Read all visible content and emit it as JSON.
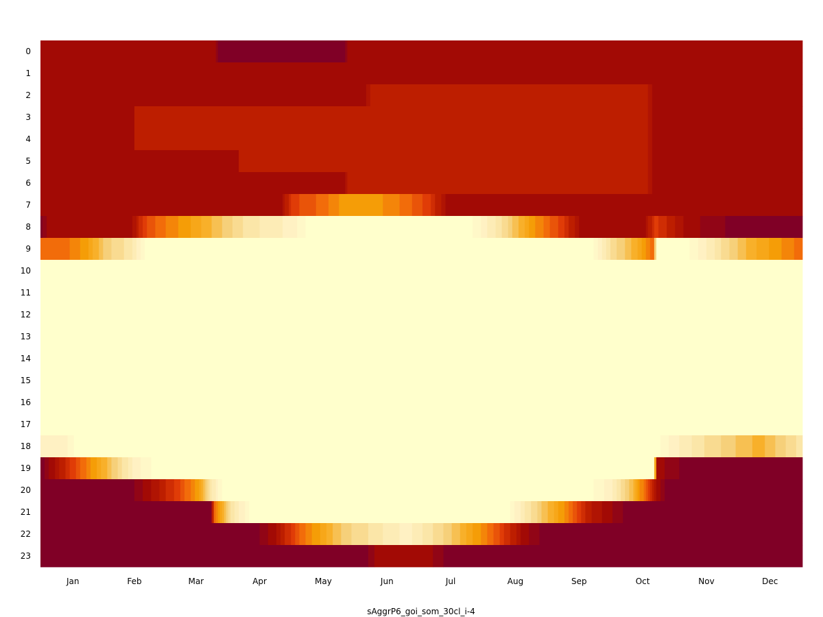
{
  "chart_data": {
    "type": "heatmap",
    "title": "",
    "xlabel": "sAggrP6_goi_som_30cl_i-4",
    "ylabel": "",
    "x_tick_labels": [
      "Jan",
      "Feb",
      "Mar",
      "Apr",
      "May",
      "Jun",
      "Jul",
      "Aug",
      "Sep",
      "Oct",
      "Nov",
      "Dec"
    ],
    "y_tick_labels": [
      "0",
      "1",
      "2",
      "3",
      "4",
      "5",
      "6",
      "7",
      "8",
      "9",
      "10",
      "11",
      "12",
      "13",
      "14",
      "15",
      "16",
      "17",
      "18",
      "19",
      "20",
      "21",
      "22",
      "23"
    ],
    "x_range_days": [
      1,
      365
    ],
    "y_range_hours": [
      0,
      23
    ],
    "grid": false,
    "legend": "none",
    "colormap": [
      "#800026",
      "#a20a05",
      "#bd1e00",
      "#e03c07",
      "#f26c0a",
      "#f59d07",
      "#f8b02a",
      "#f6d07a",
      "#fbe6a8",
      "#fff1c3",
      "#ffffcc"
    ],
    "value_scale": "0 (darkest, #800026) to 10 (lightest, #ffffcc)",
    "profiles": {
      "description": "Per hour: list of [day_of_year, level] control points; level 0-10 indexes colormap; linear interpolation between points.",
      "hours": [
        [
          [
            1,
            1
          ],
          [
            84,
            1
          ],
          [
            86,
            0
          ],
          [
            146,
            0
          ],
          [
            148,
            1
          ],
          [
            365,
            1
          ]
        ],
        [
          [
            1,
            1
          ],
          [
            365,
            1
          ]
        ],
        [
          [
            1,
            1
          ],
          [
            156,
            1
          ],
          [
            160,
            2
          ],
          [
            290,
            2
          ],
          [
            294,
            1
          ],
          [
            365,
            1
          ]
        ],
        [
          [
            1,
            1
          ],
          [
            45,
            1
          ],
          [
            46,
            2
          ],
          [
            146,
            2
          ],
          [
            148,
            2
          ],
          [
            290,
            2
          ],
          [
            294,
            1
          ],
          [
            365,
            1
          ]
        ],
        [
          [
            1,
            1
          ],
          [
            45,
            1
          ],
          [
            46,
            2
          ],
          [
            146,
            2
          ],
          [
            148,
            2
          ],
          [
            290,
            2
          ],
          [
            294,
            1
          ],
          [
            365,
            1
          ]
        ],
        [
          [
            1,
            1
          ],
          [
            95,
            1
          ],
          [
            96,
            2
          ],
          [
            136,
            2
          ],
          [
            138,
            2
          ],
          [
            290,
            2
          ],
          [
            294,
            1
          ],
          [
            365,
            1
          ]
        ],
        [
          [
            1,
            1
          ],
          [
            146,
            1
          ],
          [
            148,
            2
          ],
          [
            290,
            2
          ],
          [
            294,
            1
          ],
          [
            365,
            1
          ]
        ],
        [
          [
            1,
            1
          ],
          [
            116,
            1
          ],
          [
            121,
            3
          ],
          [
            136,
            4
          ],
          [
            146,
            5
          ],
          [
            161,
            5
          ],
          [
            176,
            4
          ],
          [
            186,
            3
          ],
          [
            196,
            1
          ],
          [
            365,
            1
          ]
        ],
        [
          [
            1,
            0
          ],
          [
            5,
            1
          ],
          [
            44,
            1
          ],
          [
            50,
            3
          ],
          [
            58,
            4
          ],
          [
            70,
            5
          ],
          [
            80,
            6
          ],
          [
            100,
            8
          ],
          [
            122,
            9
          ],
          [
            130,
            10
          ],
          [
            206,
            10
          ],
          [
            220,
            8
          ],
          [
            236,
            5
          ],
          [
            250,
            3
          ],
          [
            260,
            1
          ],
          [
            290,
            1
          ],
          [
            295,
            3
          ],
          [
            310,
            1
          ],
          [
            335,
            0
          ],
          [
            365,
            0
          ]
        ],
        [
          [
            1,
            4
          ],
          [
            12,
            4
          ],
          [
            22,
            5
          ],
          [
            32,
            7
          ],
          [
            44,
            8
          ],
          [
            52,
            10
          ],
          [
            265,
            10
          ],
          [
            272,
            8
          ],
          [
            285,
            6
          ],
          [
            294,
            4
          ],
          [
            296,
            10
          ],
          [
            310,
            10
          ],
          [
            325,
            8
          ],
          [
            340,
            6
          ],
          [
            365,
            4
          ]
        ],
        [
          [
            1,
            10
          ],
          [
            365,
            10
          ]
        ],
        [
          [
            1,
            10
          ],
          [
            365,
            10
          ]
        ],
        [
          [
            1,
            10
          ],
          [
            365,
            10
          ]
        ],
        [
          [
            1,
            10
          ],
          [
            365,
            10
          ]
        ],
        [
          [
            1,
            10
          ],
          [
            365,
            10
          ]
        ],
        [
          [
            1,
            10
          ],
          [
            365,
            10
          ]
        ],
        [
          [
            1,
            10
          ],
          [
            365,
            10
          ]
        ],
        [
          [
            1,
            10
          ],
          [
            365,
            10
          ]
        ],
        [
          [
            1,
            9
          ],
          [
            12,
            9
          ],
          [
            18,
            10
          ],
          [
            295,
            10
          ],
          [
            303,
            9
          ],
          [
            315,
            8
          ],
          [
            330,
            7
          ],
          [
            345,
            6
          ],
          [
            355,
            7
          ],
          [
            365,
            8
          ]
        ],
        [
          [
            1,
            0
          ],
          [
            6,
            1
          ],
          [
            16,
            3
          ],
          [
            26,
            5
          ],
          [
            36,
            7
          ],
          [
            46,
            9
          ],
          [
            56,
            10
          ],
          [
            294,
            10
          ],
          [
            296,
            1
          ],
          [
            310,
            0
          ],
          [
            365,
            0
          ]
        ],
        [
          [
            1,
            0
          ],
          [
            44,
            0
          ],
          [
            52,
            1
          ],
          [
            66,
            3
          ],
          [
            76,
            5
          ],
          [
            82,
            8
          ],
          [
            88,
            10
          ],
          [
            263,
            10
          ],
          [
            273,
            9
          ],
          [
            285,
            6
          ],
          [
            292,
            3
          ],
          [
            296,
            1
          ],
          [
            300,
            0
          ],
          [
            365,
            0
          ]
        ],
        [
          [
            1,
            0
          ],
          [
            82,
            0
          ],
          [
            84,
            4
          ],
          [
            92,
            8
          ],
          [
            102,
            10
          ],
          [
            224,
            10
          ],
          [
            234,
            8
          ],
          [
            250,
            5
          ],
          [
            262,
            2
          ],
          [
            272,
            1
          ],
          [
            282,
            0
          ],
          [
            365,
            0
          ]
        ],
        [
          [
            1,
            0
          ],
          [
            104,
            0
          ],
          [
            112,
            1
          ],
          [
            126,
            4
          ],
          [
            146,
            7
          ],
          [
            176,
            9
          ],
          [
            196,
            7
          ],
          [
            216,
            4
          ],
          [
            232,
            1
          ],
          [
            242,
            0
          ],
          [
            365,
            0
          ]
        ],
        [
          [
            1,
            0
          ],
          [
            156,
            0
          ],
          [
            162,
            1
          ],
          [
            186,
            1
          ],
          [
            196,
            0
          ],
          [
            365,
            0
          ]
        ]
      ]
    }
  }
}
